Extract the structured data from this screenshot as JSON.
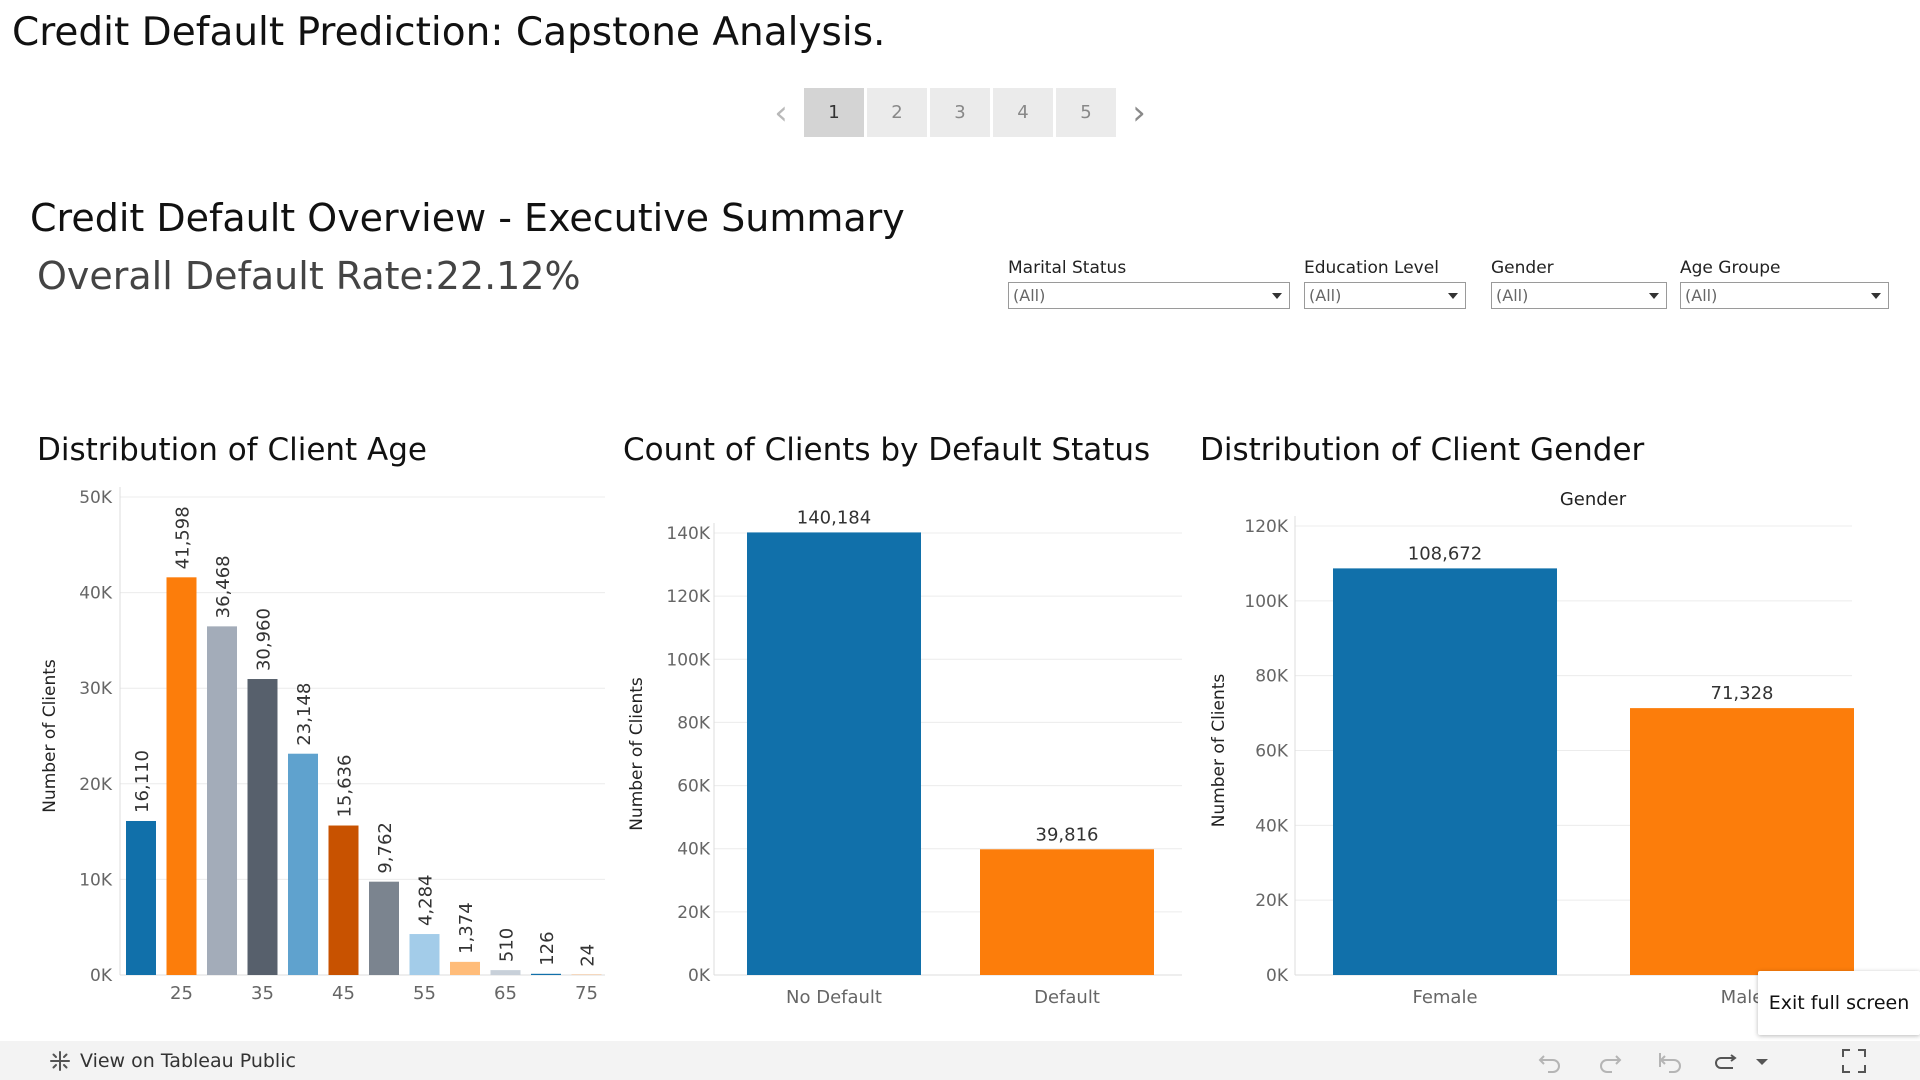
{
  "story": {
    "title": "Credit Default Prediction: Capstone Analysis.",
    "points": [
      "1",
      "2",
      "3",
      "4",
      "5"
    ],
    "active_point": "1"
  },
  "dashboard": {
    "title": "Credit Default Overview - Executive Summary",
    "rate_label": "Overall Default Rate:",
    "rate_value": "22.12%"
  },
  "filters": [
    {
      "label": "Marital Status",
      "value": "(All)"
    },
    {
      "label": "Education Level",
      "value": "(All)"
    },
    {
      "label": "Gender",
      "value": "(All)"
    },
    {
      "label": "Age Groupe",
      "value": "(All)"
    }
  ],
  "colors": {
    "blue": "#1170aa",
    "orange": "#fc7d0b",
    "gray_light": "#a3acb9",
    "slate": "#57606c",
    "blue_light": "#5fa2ce",
    "orange_dark": "#c85200",
    "gray_mid": "#7b848f",
    "blue_pale": "#a3cce9",
    "orange_pale": "#ffbc79",
    "gray_pale": "#c8d0d9"
  },
  "chart_data": [
    {
      "type": "bar",
      "title": "Distribution of Client Age",
      "xlabel": "",
      "ylabel": "Number of Clients",
      "x_ticks": [
        "25",
        "35",
        "45",
        "55",
        "65",
        "75"
      ],
      "values": [
        16110,
        41598,
        36468,
        30960,
        23148,
        15636,
        9762,
        4284,
        1374,
        510,
        126,
        24
      ],
      "data_labels": [
        "16,110",
        "41,598",
        "36,468",
        "30,960",
        "23,148",
        "15,636",
        "9,762",
        "4,284",
        "1,374",
        "510",
        "126",
        "24"
      ],
      "bar_colors": [
        "#1170aa",
        "#fc7d0b",
        "#a3acb9",
        "#57606c",
        "#5fa2ce",
        "#c85200",
        "#7b848f",
        "#a3cce9",
        "#ffbc79",
        "#c8d0d9",
        "#1170aa",
        "#fc7d0b"
      ],
      "ylim": [
        0,
        50000
      ],
      "y_ticks": [
        "0K",
        "10K",
        "20K",
        "30K",
        "40K",
        "50K"
      ],
      "grid": true
    },
    {
      "type": "bar",
      "title": "Count of Clients by Default Status",
      "categories": [
        "No Default",
        "Default"
      ],
      "values": [
        140184,
        39816
      ],
      "data_labels": [
        "140,184",
        "39,816"
      ],
      "bar_colors": [
        "#1170aa",
        "#fc7d0b"
      ],
      "xlabel": "",
      "ylabel": "Number of Clients",
      "ylim": [
        0,
        140000
      ],
      "y_ticks": [
        "0K",
        "20K",
        "40K",
        "60K",
        "80K",
        "100K",
        "120K",
        "140K"
      ],
      "grid": true
    },
    {
      "type": "bar",
      "title": "Distribution of Client Gender",
      "header": "Gender",
      "categories": [
        "Female",
        "Male"
      ],
      "values": [
        108672,
        71328
      ],
      "data_labels": [
        "108,672",
        "71,328"
      ],
      "bar_colors": [
        "#1170aa",
        "#fc7d0b"
      ],
      "xlabel": "",
      "ylabel": "Number of Clients",
      "ylim": [
        0,
        120000
      ],
      "y_ticks": [
        "0K",
        "20K",
        "40K",
        "60K",
        "80K",
        "100K",
        "120K"
      ],
      "grid": true
    }
  ],
  "toolbar": {
    "tableau_link": "View on Tableau Public",
    "exit_fullscreen": "Exit full screen",
    "icons": [
      "undo-icon",
      "redo-icon",
      "revert-icon",
      "refresh-icon",
      "dropdown-arrow-icon",
      "fullscreen-icon"
    ]
  }
}
